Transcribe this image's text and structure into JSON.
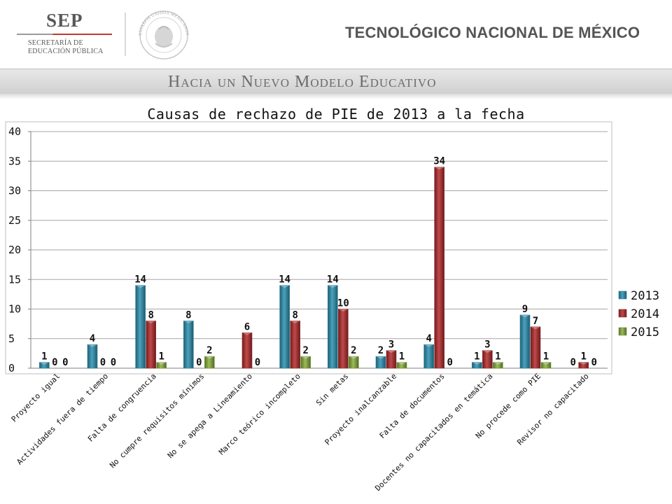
{
  "header": {
    "sep_title": "SEP",
    "sep_line1": "SECRETARÍA DE",
    "sep_line2": "EDUCACIÓN PÚBLICA",
    "seal_text": "ESTADOS UNIDOS MEXICANOS",
    "institution": "TECNOLÓGICO NACIONAL DE MÉXICO"
  },
  "banner": {
    "text": "Hacia un Nuevo Modelo Educativo"
  },
  "colors": {
    "s2013": "#2f7f99",
    "s2014": "#9b2d2e",
    "s2015": "#7b9a3c"
  },
  "chart_data": {
    "type": "bar",
    "title": "Causas de rechazo de PIE de 2013 a la fecha",
    "xlabel": "",
    "ylabel": "",
    "ylim": [
      0,
      40
    ],
    "yticks": [
      0,
      5,
      10,
      15,
      20,
      25,
      30,
      35,
      40
    ],
    "grid": true,
    "legend_position": "right",
    "categories": [
      "Proyecto igual",
      "Actividades fuera de tiempo",
      "Falta de congruencia",
      "No cumpre requisitos mínimos",
      "No se apega a Lineamiento",
      "Marco teórico incompleto",
      "Sin metas",
      "Proyecto inalcanzable",
      "Falta de documentos",
      "Docentes no capacitados en temática",
      "No procede como PIE",
      "Revisor no capacitado"
    ],
    "series": [
      {
        "name": "2013",
        "values": [
          1,
          4,
          14,
          8,
          null,
          14,
          14,
          2,
          4,
          1,
          9,
          0
        ]
      },
      {
        "name": "2014",
        "values": [
          0,
          0,
          8,
          0,
          6,
          8,
          10,
          3,
          34,
          3,
          7,
          1
        ]
      },
      {
        "name": "2015",
        "values": [
          0,
          0,
          1,
          2,
          0,
          2,
          2,
          1,
          0,
          1,
          1,
          0
        ]
      }
    ]
  }
}
